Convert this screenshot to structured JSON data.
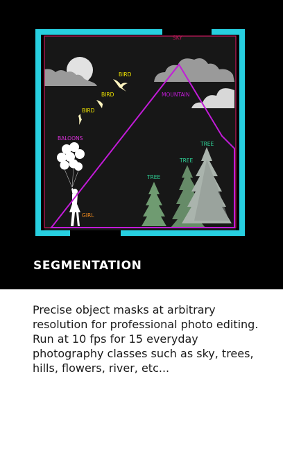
{
  "card": {
    "title": "SEGMENTATION",
    "description": "Precise object masks at arbitrary resolution for professional photo editing. Run at 10 fps for 15 everyday photography classes such as sky, trees, hills, flowers, river, etc..."
  },
  "illustration": {
    "labels": {
      "sky": "SKY",
      "mountain": "MOUNTAIN",
      "bird_1": "BIRD",
      "bird_2": "BIRD",
      "bird_3": "BIRD",
      "balloons": "BALOONS",
      "girl": "GIRL",
      "tree_1": "TREE",
      "tree_2": "TREE",
      "tree_3": "TREE"
    },
    "colors": {
      "frame": "#27cfe0",
      "sky_mask": "#c2185b",
      "mountain_mask": "#c21bd8",
      "bird_label": "#f2e600",
      "balloon_label": "#d931d9",
      "girl_label": "#f08a1e",
      "tree_label": "#2fd79a",
      "background": "#000000"
    }
  }
}
